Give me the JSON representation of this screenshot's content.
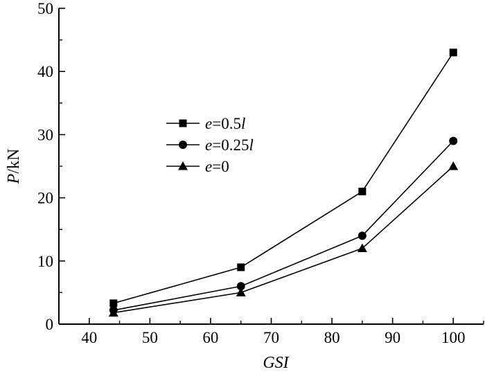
{
  "chart_data": {
    "type": "line",
    "xlabel": "GSI",
    "ylabel": {
      "var": "P",
      "unit": "/kN"
    },
    "x": [
      44,
      65,
      85,
      100
    ],
    "xlim": [
      35,
      105
    ],
    "ylim": [
      0,
      50
    ],
    "xticks": [
      40,
      50,
      60,
      70,
      80,
      90,
      100
    ],
    "yticks": [
      0,
      10,
      20,
      30,
      40,
      50
    ],
    "legend_position": "upper-left-center",
    "grid": false,
    "series": [
      {
        "name": {
          "var": "e",
          "rest": "=0.5",
          "suffix": "l"
        },
        "marker": "square",
        "values": [
          3.3,
          9,
          21,
          43
        ]
      },
      {
        "name": {
          "var": "e",
          "rest": "=0.25",
          "suffix": "l"
        },
        "marker": "circle",
        "values": [
          2.2,
          6,
          14,
          29
        ]
      },
      {
        "name": {
          "var": "e",
          "rest": "=0",
          "suffix": ""
        },
        "marker": "triangle",
        "values": [
          1.8,
          5,
          12,
          25
        ]
      }
    ]
  }
}
